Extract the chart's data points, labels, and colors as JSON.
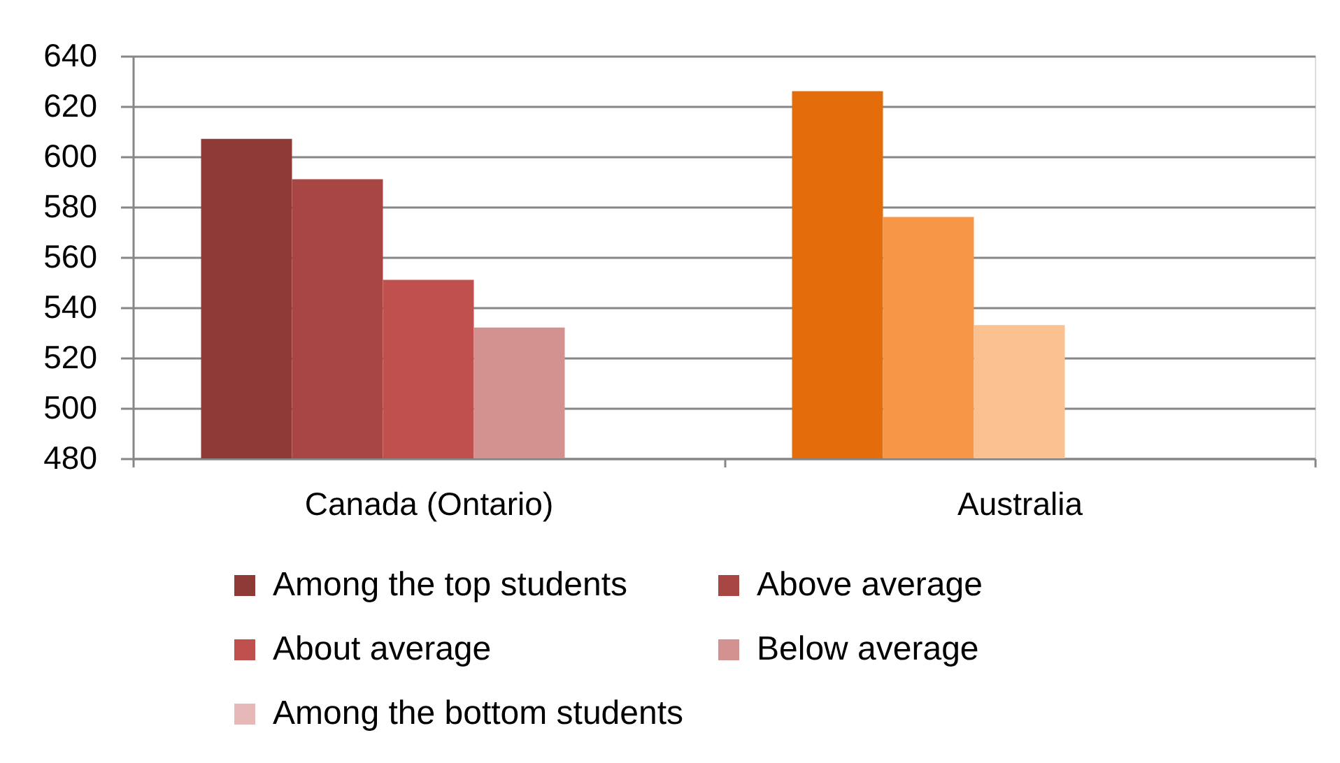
{
  "chart_data": {
    "type": "bar",
    "categories": [
      "Canada (Ontario)",
      "Australia"
    ],
    "series": [
      {
        "name": "Among the top students",
        "color": "#8e3b38",
        "colors": [
          "#8e3b38",
          "#e46c0a"
        ],
        "values": [
          607,
          626
        ]
      },
      {
        "name": "Above average",
        "color": "#a84644",
        "colors": [
          "#a84644",
          "#f79646"
        ],
        "values": [
          591,
          576
        ]
      },
      {
        "name": "About average",
        "color": "#c0504d",
        "colors": [
          "#c0504d",
          "#fac090"
        ],
        "values": [
          551,
          533
        ]
      },
      {
        "name": "Below average",
        "color": "#d39290",
        "colors": [
          "#d39290",
          null
        ],
        "values": [
          532,
          null
        ]
      },
      {
        "name": "Among the bottom students",
        "color": "#e6b9b8",
        "values": [
          null,
          null
        ]
      }
    ],
    "ylim": [
      480,
      640
    ],
    "yticks": [
      480,
      500,
      520,
      540,
      560,
      580,
      600,
      620,
      640
    ],
    "grid": "y",
    "legend": "bottom"
  }
}
